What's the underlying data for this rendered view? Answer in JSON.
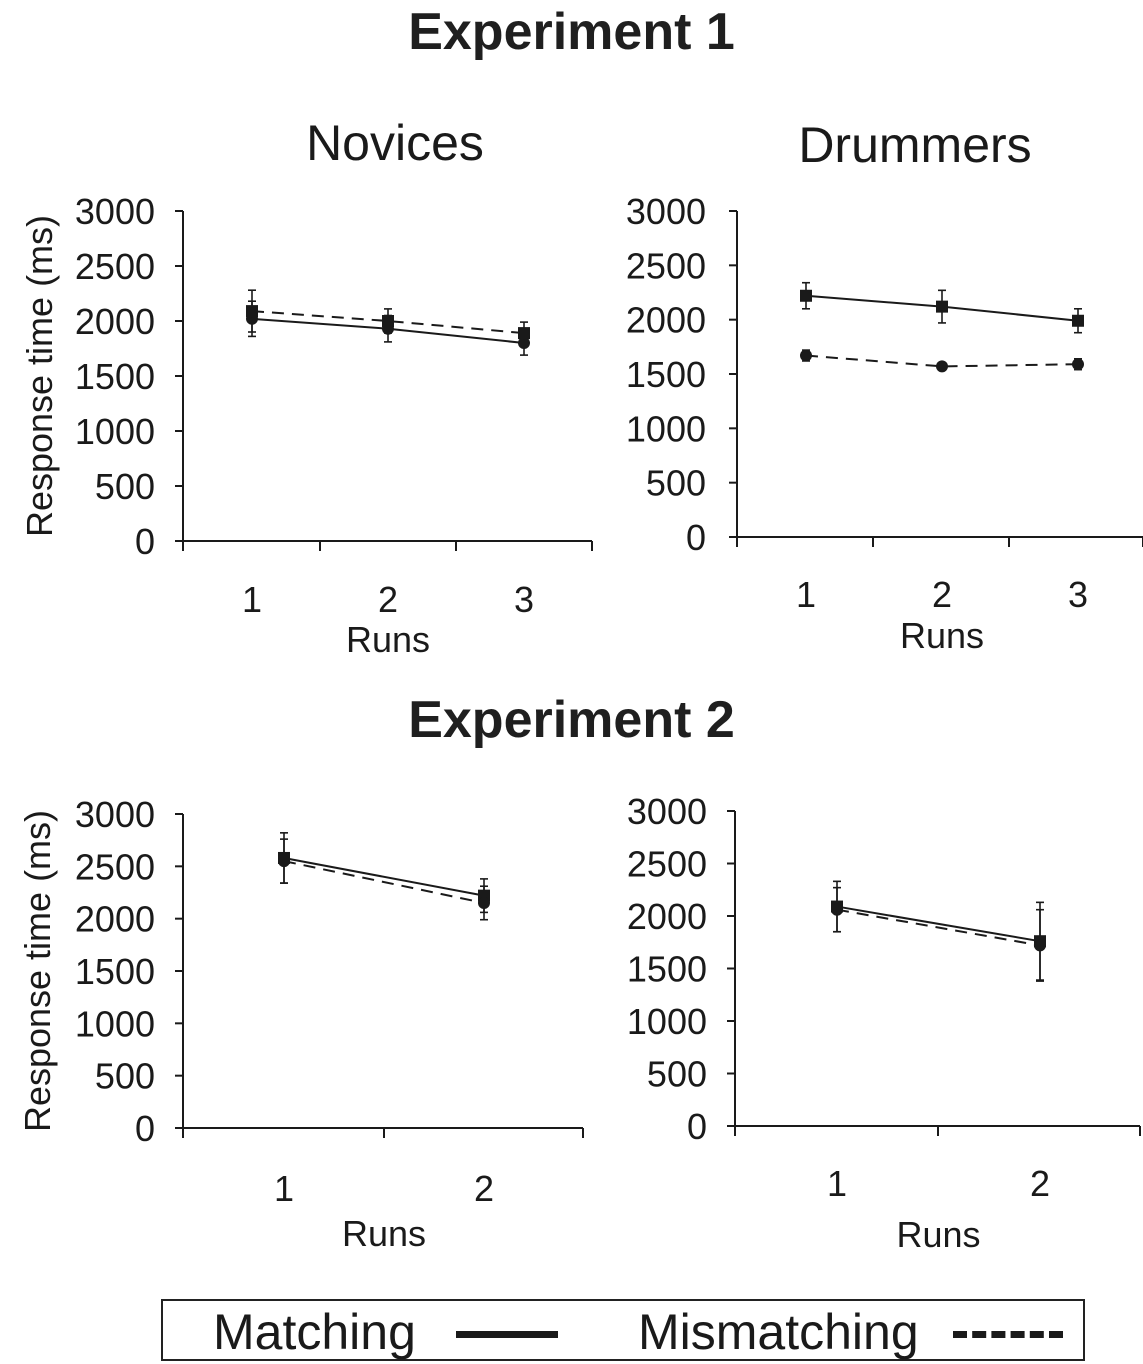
{
  "figure": {
    "experiment1_title": "Experiment 1",
    "experiment2_title": "Experiment 2"
  },
  "legend": {
    "matching_label": "Matching",
    "mismatching_label": "Mismatching"
  },
  "chart_data": [
    {
      "type": "line",
      "title": "Novices",
      "xlabel": "Runs",
      "ylabel": "Response time (ms)",
      "categories": [
        "1",
        "2",
        "3"
      ],
      "yticks": [
        "0",
        "500",
        "1000",
        "1500",
        "2000",
        "2500",
        "3000"
      ],
      "ylim": [
        0,
        3000
      ],
      "series": [
        {
          "name": "Matching",
          "style": "solid",
          "marker": "circle",
          "values": [
            2020,
            1930,
            1800
          ],
          "errors": [
            160,
            120,
            110
          ]
        },
        {
          "name": "Mismatching",
          "style": "dashed",
          "marker": "square",
          "values": [
            2090,
            2000,
            1890
          ],
          "errors": [
            190,
            110,
            100
          ]
        }
      ]
    },
    {
      "type": "line",
      "title": "Drummers",
      "xlabel": "Runs",
      "ylabel": "",
      "categories": [
        "1",
        "2",
        "3"
      ],
      "yticks": [
        "0",
        "500",
        "1000",
        "1500",
        "2000",
        "2500",
        "3000"
      ],
      "ylim": [
        0,
        3000
      ],
      "series": [
        {
          "name": "Matching",
          "style": "solid",
          "marker": "square",
          "values": [
            2220,
            2120,
            1990
          ],
          "errors": [
            120,
            150,
            110
          ]
        },
        {
          "name": "Mismatching",
          "style": "dashed",
          "marker": "circle",
          "values": [
            1670,
            1570,
            1590
          ],
          "errors": [
            50,
            30,
            50
          ]
        }
      ]
    },
    {
      "type": "line",
      "title": "",
      "xlabel": "Runs",
      "ylabel": "Response time (ms)",
      "categories": [
        "1",
        "2"
      ],
      "yticks": [
        "0",
        "500",
        "1000",
        "1500",
        "2000",
        "2500",
        "3000"
      ],
      "ylim": [
        0,
        3000
      ],
      "series": [
        {
          "name": "Matching",
          "style": "solid",
          "marker": "square",
          "values": [
            2580,
            2220
          ],
          "errors": [
            240,
            160
          ]
        },
        {
          "name": "Mismatching",
          "style": "dashed",
          "marker": "circle",
          "values": [
            2550,
            2150
          ],
          "errors": [
            210,
            160
          ]
        }
      ]
    },
    {
      "type": "line",
      "title": "",
      "xlabel": "Runs",
      "ylabel": "",
      "categories": [
        "1",
        "2"
      ],
      "yticks": [
        "0",
        "500",
        "1000",
        "1500",
        "2000",
        "2500",
        "3000"
      ],
      "ylim": [
        0,
        3000
      ],
      "series": [
        {
          "name": "Matching",
          "style": "solid",
          "marker": "square",
          "values": [
            2090,
            1760
          ],
          "errors": [
            240,
            370
          ]
        },
        {
          "name": "Mismatching",
          "style": "dashed",
          "marker": "circle",
          "values": [
            2060,
            1720
          ],
          "errors": [
            210,
            340
          ]
        }
      ]
    }
  ]
}
